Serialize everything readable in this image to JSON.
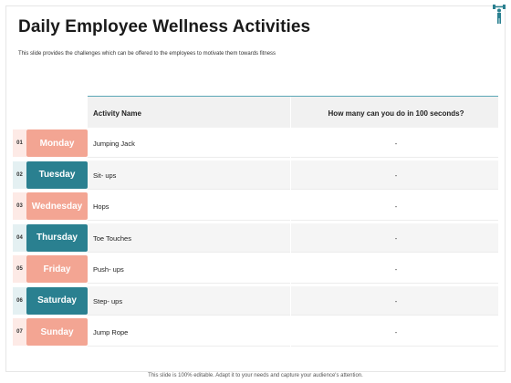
{
  "slide": {
    "title": "Daily Employee Wellness Activities",
    "subtitle": "This slide provides the challenges which can be offered to the employees to motivate them towards fitness"
  },
  "table": {
    "headers": {
      "activity": "Activity Name",
      "count": "How many can you do in 100 seconds?"
    },
    "rows": [
      {
        "num": "01",
        "day": "Monday",
        "activity": "Jumping Jack",
        "value": "-",
        "style": "salmon"
      },
      {
        "num": "02",
        "day": "Tuesday",
        "activity": "Sit- ups",
        "value": "-",
        "style": "teal"
      },
      {
        "num": "03",
        "day": "Wednesday",
        "activity": "Hops",
        "value": "-",
        "style": "salmon"
      },
      {
        "num": "04",
        "day": "Thursday",
        "activity": "Toe Touches",
        "value": "-",
        "style": "teal"
      },
      {
        "num": "05",
        "day": "Friday",
        "activity": "Push- ups",
        "value": "-",
        "style": "salmon"
      },
      {
        "num": "06",
        "day": "Saturday",
        "activity": "Step- ups",
        "value": "-",
        "style": "teal"
      },
      {
        "num": "07",
        "day": "Sunday",
        "activity": "Jump Rope",
        "value": "-",
        "style": "salmon"
      }
    ]
  },
  "colors": {
    "salmon": "#f3a593",
    "teal": "#2a8090",
    "accent_line": "#5ba7b5"
  },
  "icons": {
    "corner": "fitness-person-icon"
  },
  "footer": {
    "text": "This slide is 100% editable. Adapt it to your needs and capture your audience's attention."
  }
}
